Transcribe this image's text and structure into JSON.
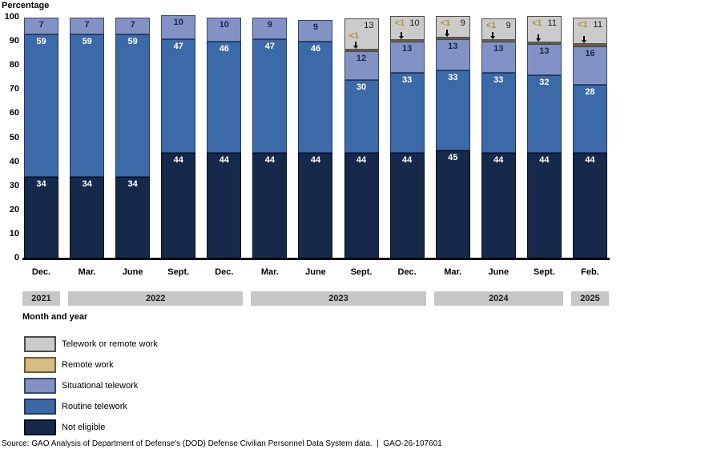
{
  "chart_data": {
    "type": "bar",
    "stacked": true,
    "unit": "percent",
    "ylabel": "Percentage",
    "xlabel": "Month and year",
    "ylim": [
      0,
      100
    ],
    "y_ticks": [
      0,
      10,
      20,
      30,
      40,
      50,
      60,
      70,
      80,
      90,
      100
    ],
    "grid": false,
    "legend_position": "bottom-left",
    "categories": [
      "Dec.",
      "Mar.",
      "June",
      "Sept.",
      "Dec.",
      "Mar.",
      "June",
      "Sept.",
      "Dec.",
      "Mar.",
      "June",
      "Sept.",
      "Feb."
    ],
    "year_groups": [
      {
        "label": "2021",
        "start": 0,
        "end": 0
      },
      {
        "label": "2022",
        "start": 1,
        "end": 4
      },
      {
        "label": "2023",
        "start": 5,
        "end": 8
      },
      {
        "label": "2024",
        "start": 9,
        "end": 11
      },
      {
        "label": "2025",
        "start": 12,
        "end": 12
      }
    ],
    "series": [
      {
        "name": "Not eligible",
        "values": [
          34,
          34,
          34,
          44,
          44,
          44,
          44,
          44,
          44,
          45,
          44,
          44,
          44
        ]
      },
      {
        "name": "Routine telework",
        "values": [
          59,
          59,
          59,
          47,
          46,
          47,
          46,
          30,
          33,
          33,
          33,
          32,
          28
        ]
      },
      {
        "name": "Situational telework",
        "values": [
          7,
          7,
          7,
          10,
          10,
          9,
          9,
          12,
          13,
          13,
          13,
          13,
          16
        ]
      },
      {
        "name": "Remote work",
        "values": [
          null,
          null,
          null,
          null,
          null,
          null,
          null,
          "<1",
          "<1",
          "<1",
          "<1",
          "<1",
          "<1"
        ]
      },
      {
        "name": "Telework or remote work",
        "values": [
          null,
          null,
          null,
          null,
          null,
          null,
          null,
          13,
          10,
          9,
          9,
          11,
          11
        ]
      }
    ]
  },
  "legend": [
    {
      "label": "Telework or remote work",
      "fill": "#cbcbcb",
      "border": "#4d4d4d"
    },
    {
      "label": "Remote work",
      "fill": "#d5bc83",
      "border": "#6e5f33"
    },
    {
      "label": "Situational telework",
      "fill": "#8292c5",
      "border": "#36486e"
    },
    {
      "label": "Routine telework",
      "fill": "#3c69a8",
      "border": "#1d3a66"
    },
    {
      "label": "Not eligible",
      "fill": "#17294b",
      "border": "#060e1f"
    }
  ],
  "colors": {
    "value_label_light": "#ffffff",
    "value_label_dark": "#17294b",
    "gray_label": "#1a1a1a",
    "lt1_label": "#b2903f",
    "year_band_bg": "#c7c7c7",
    "baseline": "#000000"
  },
  "source_line": "Source: GAO Analysis of Department of Defense's (DOD) Defense Civilian Personnel Data System data.  |  GAO-26-107601"
}
